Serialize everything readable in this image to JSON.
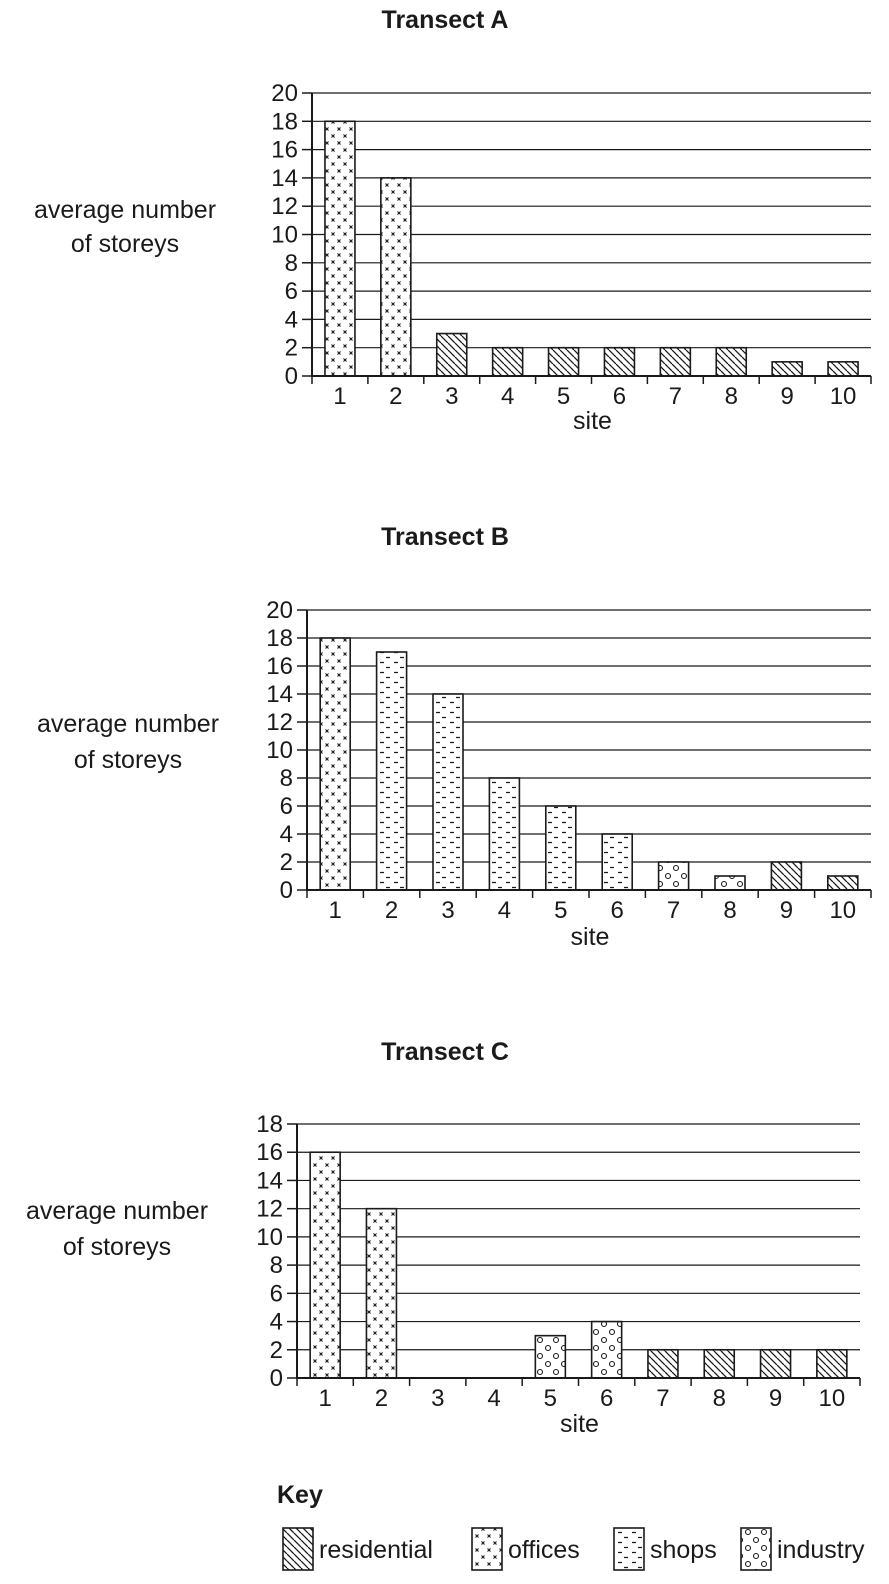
{
  "chart_data": [
    {
      "type": "bar",
      "title": "Transect A",
      "xlabel": "site",
      "ylabel": [
        "average number",
        "of storeys"
      ],
      "ylim": [
        0,
        20
      ],
      "yticks": [
        0,
        2,
        4,
        6,
        8,
        10,
        12,
        14,
        16,
        18,
        20
      ],
      "categories": [
        "1",
        "2",
        "3",
        "4",
        "5",
        "6",
        "7",
        "8",
        "9",
        "10"
      ],
      "values": [
        18,
        14,
        3,
        2,
        2,
        2,
        2,
        2,
        1,
        1
      ],
      "land_use": [
        "offices",
        "offices",
        "residential",
        "residential",
        "residential",
        "residential",
        "residential",
        "residential",
        "residential",
        "residential"
      ],
      "grid": true
    },
    {
      "type": "bar",
      "title": "Transect B",
      "xlabel": "site",
      "ylabel": [
        "average number",
        "of storeys"
      ],
      "ylim": [
        0,
        20
      ],
      "yticks": [
        0,
        2,
        4,
        6,
        8,
        10,
        12,
        14,
        16,
        18,
        20
      ],
      "categories": [
        "1",
        "2",
        "3",
        "4",
        "5",
        "6",
        "7",
        "8",
        "9",
        "10"
      ],
      "values": [
        18,
        17,
        14,
        8,
        6,
        4,
        2,
        1,
        2,
        1
      ],
      "land_use": [
        "offices",
        "shops",
        "shops",
        "shops",
        "shops",
        "shops",
        "industry",
        "industry",
        "residential",
        "residential"
      ],
      "grid": true
    },
    {
      "type": "bar",
      "title": "Transect C",
      "xlabel": "site",
      "ylabel": [
        "average number",
        "of storeys"
      ],
      "ylim": [
        0,
        18
      ],
      "yticks": [
        0,
        2,
        4,
        6,
        8,
        10,
        12,
        14,
        16,
        18
      ],
      "categories": [
        "1",
        "2",
        "3",
        "4",
        "5",
        "6",
        "7",
        "8",
        "9",
        "10"
      ],
      "values": [
        16,
        12,
        0,
        0,
        3,
        4,
        2,
        2,
        2,
        2
      ],
      "land_use": [
        "offices",
        "offices",
        "residential",
        "residential",
        "industry",
        "industry",
        "residential",
        "residential",
        "residential",
        "residential"
      ],
      "grid": true
    }
  ],
  "key": {
    "title": "Key",
    "items": [
      {
        "label": "residential",
        "pattern": "residential"
      },
      {
        "label": "offices",
        "pattern": "offices"
      },
      {
        "label": "shops",
        "pattern": "shops"
      },
      {
        "label": "industry",
        "pattern": "industry"
      }
    ]
  },
  "colors": {
    "ink": "#1a1a1a",
    "background": "#ffffff"
  }
}
